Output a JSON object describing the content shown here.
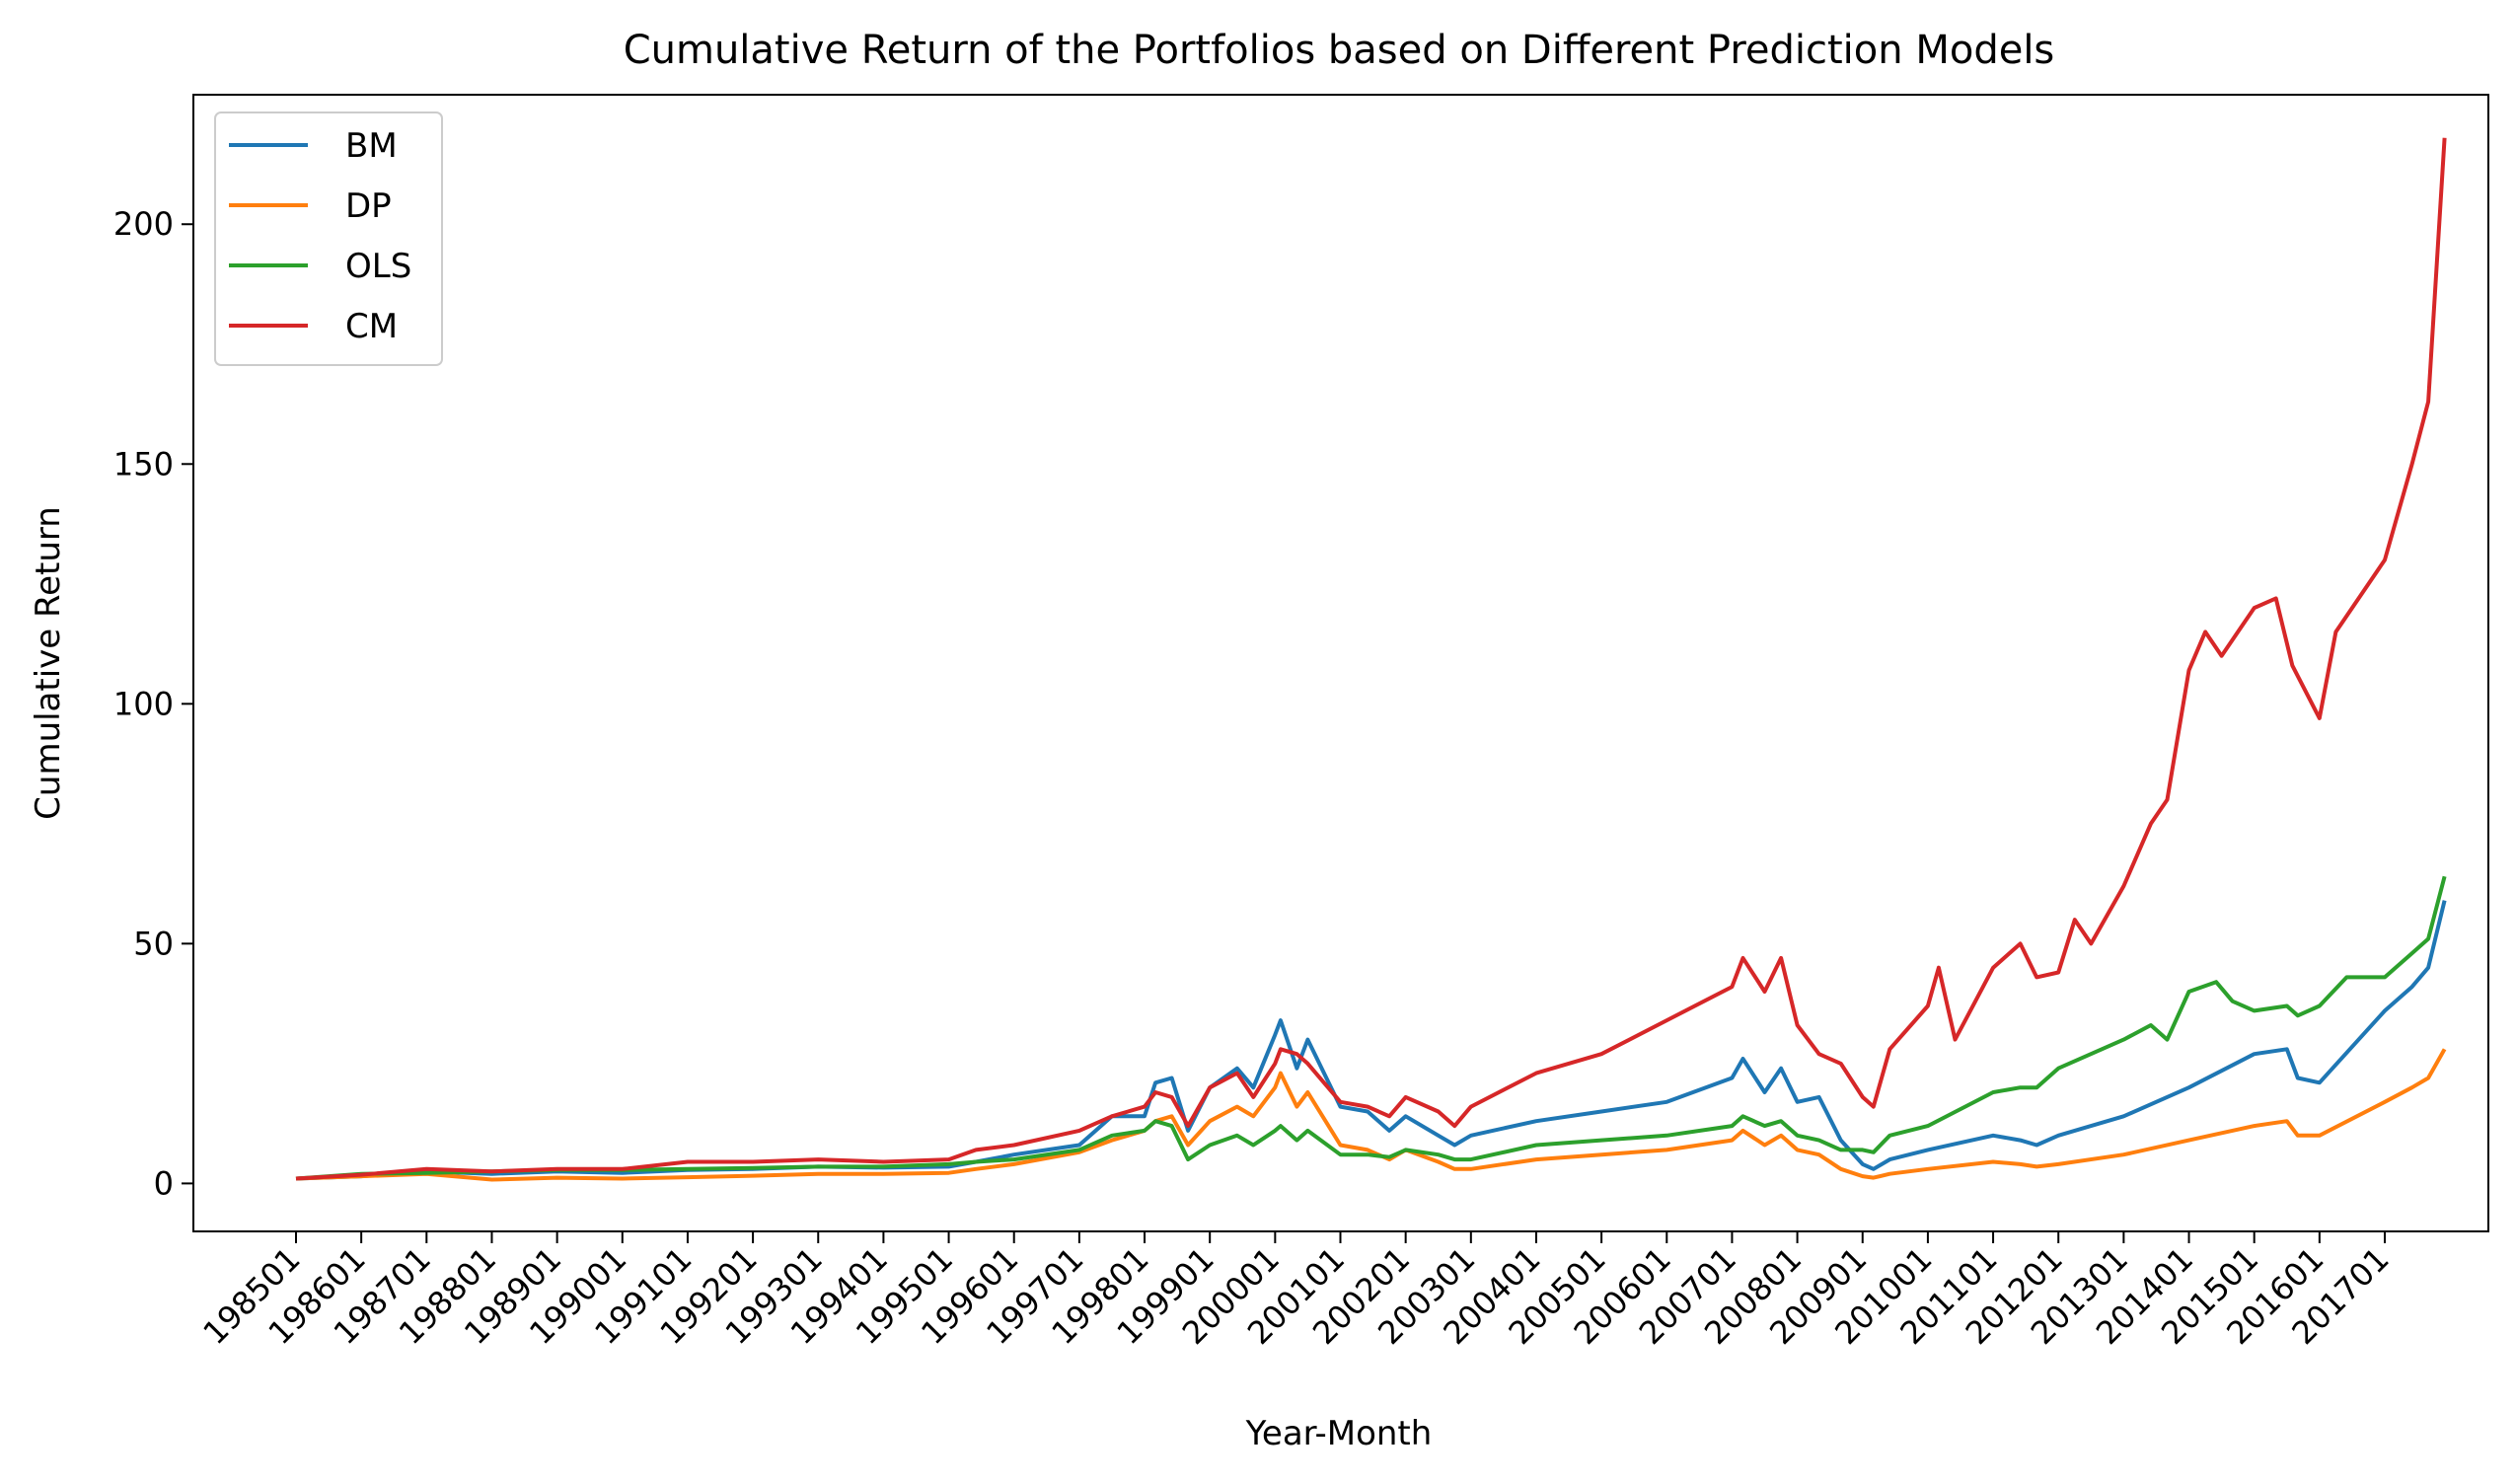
{
  "chart_data": {
    "type": "line",
    "title": "Cumulative Return of the Portfolios based on Different Prediction Models",
    "xlabel": "Year-Month",
    "ylabel": "Cumulative Return",
    "x_tick_labels": [
      "198501",
      "198601",
      "198701",
      "198801",
      "198901",
      "199001",
      "199101",
      "199201",
      "199301",
      "199401",
      "199501",
      "199601",
      "199701",
      "199801",
      "199901",
      "200001",
      "200101",
      "200201",
      "200301",
      "200401",
      "200501",
      "200601",
      "200701",
      "200801",
      "200901",
      "201001",
      "201101",
      "201201",
      "201301",
      "201401",
      "201501",
      "201601",
      "201701"
    ],
    "y_ticks": [
      0,
      50,
      100,
      150,
      200
    ],
    "ylim": [
      -10,
      227
    ],
    "grid": false,
    "legend_position": "top-left",
    "series": [
      {
        "name": "BM",
        "color": "#1f77b4",
        "points": [
          [
            "198501",
            1
          ],
          [
            "198601",
            1.5
          ],
          [
            "198701",
            2.5
          ],
          [
            "198801",
            2
          ],
          [
            "198901",
            2.5
          ],
          [
            "199001",
            2.2
          ],
          [
            "199101",
            2.8
          ],
          [
            "199201",
            3
          ],
          [
            "199301",
            3.5
          ],
          [
            "199401",
            3.3
          ],
          [
            "199501",
            3.5
          ],
          [
            "199506",
            4.5
          ],
          [
            "199601",
            6
          ],
          [
            "199701",
            8
          ],
          [
            "199707",
            14
          ],
          [
            "199801",
            14
          ],
          [
            "199803",
            21
          ],
          [
            "199806",
            22
          ],
          [
            "199809",
            11
          ],
          [
            "199901",
            20
          ],
          [
            "199906",
            24
          ],
          [
            "199909",
            20
          ],
          [
            "200001",
            31
          ],
          [
            "200002",
            34
          ],
          [
            "200005",
            24
          ],
          [
            "200007",
            30
          ],
          [
            "200101",
            16
          ],
          [
            "200106",
            15
          ],
          [
            "200110",
            11
          ],
          [
            "200201",
            14
          ],
          [
            "200207",
            10
          ],
          [
            "200210",
            8
          ],
          [
            "200301",
            10
          ],
          [
            "200401",
            13
          ],
          [
            "200501",
            15
          ],
          [
            "200601",
            17
          ],
          [
            "200701",
            22
          ],
          [
            "200703",
            26
          ],
          [
            "200707",
            19
          ],
          [
            "200710",
            24
          ],
          [
            "200801",
            17
          ],
          [
            "200805",
            18
          ],
          [
            "200809",
            9
          ],
          [
            "200901",
            4
          ],
          [
            "200903",
            3
          ],
          [
            "200906",
            5
          ],
          [
            "201001",
            7
          ],
          [
            "201101",
            10
          ],
          [
            "201106",
            9
          ],
          [
            "201109",
            8
          ],
          [
            "201201",
            10
          ],
          [
            "201301",
            14
          ],
          [
            "201401",
            20
          ],
          [
            "201501",
            27
          ],
          [
            "201507",
            28
          ],
          [
            "201509",
            22
          ],
          [
            "201601",
            21
          ],
          [
            "201701",
            36
          ],
          [
            "201706",
            41
          ],
          [
            "201709",
            45
          ],
          [
            "201712",
            59
          ]
        ]
      },
      {
        "name": "DP",
        "color": "#ff7f0e",
        "points": [
          [
            "198501",
            1
          ],
          [
            "198601",
            1.5
          ],
          [
            "198701",
            2
          ],
          [
            "198801",
            0.8
          ],
          [
            "198901",
            1.2
          ],
          [
            "199001",
            1
          ],
          [
            "199101",
            1.3
          ],
          [
            "199201",
            1.6
          ],
          [
            "199301",
            2
          ],
          [
            "199401",
            2
          ],
          [
            "199501",
            2.2
          ],
          [
            "199506",
            3
          ],
          [
            "199601",
            4
          ],
          [
            "199701",
            6.5
          ],
          [
            "199707",
            9
          ],
          [
            "199801",
            11
          ],
          [
            "199803",
            13
          ],
          [
            "199806",
            14
          ],
          [
            "199809",
            8
          ],
          [
            "199901",
            13
          ],
          [
            "199906",
            16
          ],
          [
            "199909",
            14
          ],
          [
            "200001",
            20
          ],
          [
            "200002",
            23
          ],
          [
            "200005",
            16
          ],
          [
            "200007",
            19
          ],
          [
            "200101",
            8
          ],
          [
            "200106",
            7
          ],
          [
            "200110",
            5
          ],
          [
            "200201",
            7
          ],
          [
            "200207",
            4.5
          ],
          [
            "200210",
            3
          ],
          [
            "200301",
            3
          ],
          [
            "200401",
            5
          ],
          [
            "200501",
            6
          ],
          [
            "200601",
            7
          ],
          [
            "200701",
            9
          ],
          [
            "200703",
            11
          ],
          [
            "200707",
            8
          ],
          [
            "200710",
            10
          ],
          [
            "200801",
            7
          ],
          [
            "200805",
            6
          ],
          [
            "200809",
            3
          ],
          [
            "200901",
            1.5
          ],
          [
            "200903",
            1.2
          ],
          [
            "200906",
            2
          ],
          [
            "201001",
            3
          ],
          [
            "201101",
            4.5
          ],
          [
            "201106",
            4
          ],
          [
            "201109",
            3.5
          ],
          [
            "201201",
            4
          ],
          [
            "201301",
            6
          ],
          [
            "201401",
            9
          ],
          [
            "201501",
            12
          ],
          [
            "201507",
            13
          ],
          [
            "201509",
            10
          ],
          [
            "201601",
            10
          ],
          [
            "201701",
            17
          ],
          [
            "201706",
            20
          ],
          [
            "201709",
            22
          ],
          [
            "201712",
            28
          ]
        ]
      },
      {
        "name": "OLS",
        "color": "#2ca02c",
        "points": [
          [
            "198501",
            1
          ],
          [
            "198601",
            2
          ],
          [
            "198701",
            2.2
          ],
          [
            "198801",
            2.5
          ],
          [
            "198901",
            2.8
          ],
          [
            "199001",
            2.8
          ],
          [
            "199101",
            3
          ],
          [
            "199201",
            3.2
          ],
          [
            "199301",
            3.5
          ],
          [
            "199401",
            3.5
          ],
          [
            "199501",
            4
          ],
          [
            "199506",
            4.5
          ],
          [
            "199601",
            5
          ],
          [
            "199701",
            7
          ],
          [
            "199707",
            10
          ],
          [
            "199801",
            11
          ],
          [
            "199803",
            13
          ],
          [
            "199806",
            12
          ],
          [
            "199809",
            5
          ],
          [
            "199901",
            8
          ],
          [
            "199906",
            10
          ],
          [
            "199909",
            8
          ],
          [
            "200001",
            11
          ],
          [
            "200002",
            12
          ],
          [
            "200005",
            9
          ],
          [
            "200007",
            11
          ],
          [
            "200101",
            6
          ],
          [
            "200106",
            6
          ],
          [
            "200110",
            5.5
          ],
          [
            "200201",
            7
          ],
          [
            "200207",
            6
          ],
          [
            "200210",
            5
          ],
          [
            "200301",
            5
          ],
          [
            "200401",
            8
          ],
          [
            "200501",
            9
          ],
          [
            "200601",
            10
          ],
          [
            "200701",
            12
          ],
          [
            "200703",
            14
          ],
          [
            "200707",
            12
          ],
          [
            "200710",
            13
          ],
          [
            "200801",
            10
          ],
          [
            "200805",
            9
          ],
          [
            "200809",
            7
          ],
          [
            "200901",
            7
          ],
          [
            "200903",
            6.5
          ],
          [
            "200906",
            10
          ],
          [
            "201001",
            12
          ],
          [
            "201101",
            19
          ],
          [
            "201106",
            20
          ],
          [
            "201109",
            20
          ],
          [
            "201201",
            24
          ],
          [
            "201301",
            30
          ],
          [
            "201306",
            33
          ],
          [
            "201309",
            30
          ],
          [
            "201401",
            40
          ],
          [
            "201406",
            42
          ],
          [
            "201409",
            38
          ],
          [
            "201501",
            36
          ],
          [
            "201507",
            37
          ],
          [
            "201509",
            35
          ],
          [
            "201601",
            37
          ],
          [
            "201606",
            43
          ],
          [
            "201701",
            43
          ],
          [
            "201706",
            48
          ],
          [
            "201709",
            51
          ],
          [
            "201712",
            64
          ]
        ]
      },
      {
        "name": "CM",
        "color": "#d62728",
        "points": [
          [
            "198501",
            1
          ],
          [
            "198601",
            1.8
          ],
          [
            "198701",
            3
          ],
          [
            "198801",
            2.5
          ],
          [
            "198901",
            3
          ],
          [
            "199001",
            3
          ],
          [
            "199101",
            4.5
          ],
          [
            "199201",
            4.5
          ],
          [
            "199301",
            5
          ],
          [
            "199401",
            4.5
          ],
          [
            "199501",
            5
          ],
          [
            "199506",
            7
          ],
          [
            "199601",
            8
          ],
          [
            "199701",
            11
          ],
          [
            "199707",
            14
          ],
          [
            "199801",
            16
          ],
          [
            "199803",
            19
          ],
          [
            "199806",
            18
          ],
          [
            "199809",
            12
          ],
          [
            "199901",
            20
          ],
          [
            "199906",
            23
          ],
          [
            "199909",
            18
          ],
          [
            "200001",
            25
          ],
          [
            "200002",
            28
          ],
          [
            "200005",
            27
          ],
          [
            "200007",
            25
          ],
          [
            "200101",
            17
          ],
          [
            "200106",
            16
          ],
          [
            "200110",
            14
          ],
          [
            "200201",
            18
          ],
          [
            "200207",
            15
          ],
          [
            "200210",
            12
          ],
          [
            "200301",
            16
          ],
          [
            "200401",
            23
          ],
          [
            "200501",
            27
          ],
          [
            "200601",
            34
          ],
          [
            "200701",
            41
          ],
          [
            "200703",
            47
          ],
          [
            "200707",
            40
          ],
          [
            "200710",
            47
          ],
          [
            "200801",
            33
          ],
          [
            "200805",
            27
          ],
          [
            "200809",
            25
          ],
          [
            "200901",
            18
          ],
          [
            "200903",
            16
          ],
          [
            "200906",
            28
          ],
          [
            "201001",
            37
          ],
          [
            "201003",
            45
          ],
          [
            "201006",
            30
          ],
          [
            "201101",
            45
          ],
          [
            "201106",
            50
          ],
          [
            "201109",
            43
          ],
          [
            "201201",
            44
          ],
          [
            "201204",
            55
          ],
          [
            "201207",
            50
          ],
          [
            "201301",
            62
          ],
          [
            "201306",
            75
          ],
          [
            "201309",
            80
          ],
          [
            "201401",
            107
          ],
          [
            "201404",
            115
          ],
          [
            "201407",
            110
          ],
          [
            "201501",
            120
          ],
          [
            "201505",
            122
          ],
          [
            "201508",
            108
          ],
          [
            "201601",
            97
          ],
          [
            "201604",
            115
          ],
          [
            "201701",
            130
          ],
          [
            "201706",
            150
          ],
          [
            "201709",
            163
          ],
          [
            "201712",
            218
          ]
        ]
      }
    ]
  }
}
